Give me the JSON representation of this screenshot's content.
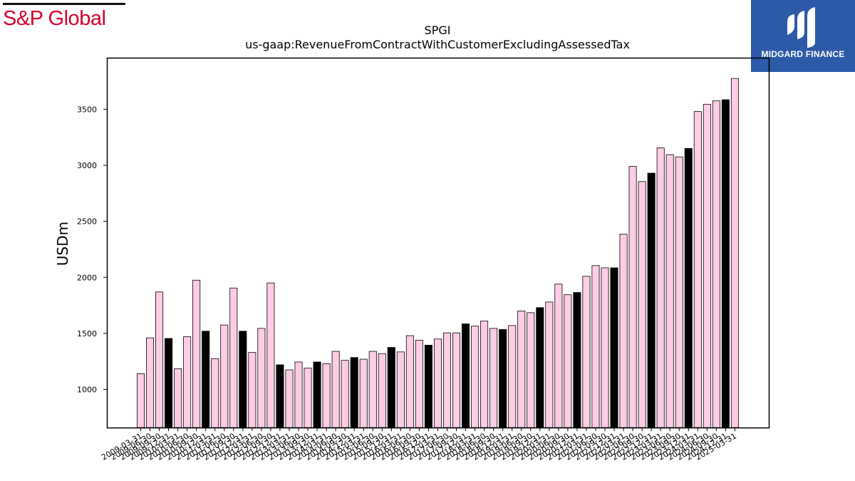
{
  "logos": {
    "left": {
      "text": "S&P Global",
      "color": "#d6002a"
    },
    "right": {
      "text": "MIDGARD FINANCE",
      "background": "#2d5aa8"
    }
  },
  "chart_data": {
    "type": "bar",
    "title": "SPGI",
    "subtitle": "us-gaap:RevenueFromContractWithCustomerExcludingAssessedTax",
    "ylabel": "USDm",
    "xlabel": "",
    "ylim": [
      660,
      3960
    ],
    "yticks": [
      1000,
      1500,
      2000,
      2500,
      3000,
      3500
    ],
    "grid": false,
    "colors": {
      "quarterly_bar": "#ffcce6",
      "q4_bar": "#000000",
      "edge": "#000000"
    },
    "categories": [
      "2009-03-31",
      "2009-06-30",
      "2009-09-30",
      "2009-12-31",
      "2010-03-31",
      "2010-06-30",
      "2010-09-30",
      "2010-12-31",
      "2011-03-31",
      "2011-06-30",
      "2011-09-30",
      "2011-12-31",
      "2012-03-31",
      "2012-06-30",
      "2012-09-30",
      "2012-12-31",
      "2013-03-31",
      "2013-06-30",
      "2013-09-30",
      "2013-12-31",
      "2014-03-31",
      "2014-06-30",
      "2014-09-30",
      "2014-12-31",
      "2015-03-31",
      "2015-06-30",
      "2015-09-30",
      "2015-12-31",
      "2016-03-31",
      "2016-06-30",
      "2016-09-30",
      "2016-12-31",
      "2017-03-31",
      "2017-06-30",
      "2017-09-30",
      "2017-12-31",
      "2018-03-31",
      "2018-06-30",
      "2018-09-30",
      "2018-12-31",
      "2019-03-31",
      "2019-06-30",
      "2019-09-30",
      "2019-12-31",
      "2020-03-31",
      "2020-06-30",
      "2020-09-30",
      "2020-12-31",
      "2021-03-31",
      "2021-06-30",
      "2021-09-30",
      "2021-12-31",
      "2022-03-31",
      "2022-06-30",
      "2022-09-30",
      "2022-12-31",
      "2023-03-31",
      "2023-06-30",
      "2023-09-30",
      "2023-12-31",
      "2024-03-31",
      "2024-06-30",
      "2024-09-30",
      "2024-12-31",
      "2025-03-31"
    ],
    "values": [
      1140,
      1460,
      1870,
      1455,
      1185,
      1470,
      1975,
      1520,
      1275,
      1575,
      1905,
      1520,
      1330,
      1545,
      1950,
      1220,
      1175,
      1245,
      1190,
      1245,
      1230,
      1340,
      1260,
      1285,
      1270,
      1340,
      1320,
      1375,
      1335,
      1480,
      1440,
      1395,
      1450,
      1505,
      1505,
      1585,
      1565,
      1610,
      1545,
      1535,
      1570,
      1700,
      1685,
      1730,
      1780,
      1940,
      1845,
      1865,
      2010,
      2105,
      2085,
      2085,
      2385,
      2990,
      2855,
      2930,
      3155,
      3095,
      3075,
      3150,
      3480,
      3545,
      3575,
      3585,
      3775
    ]
  }
}
